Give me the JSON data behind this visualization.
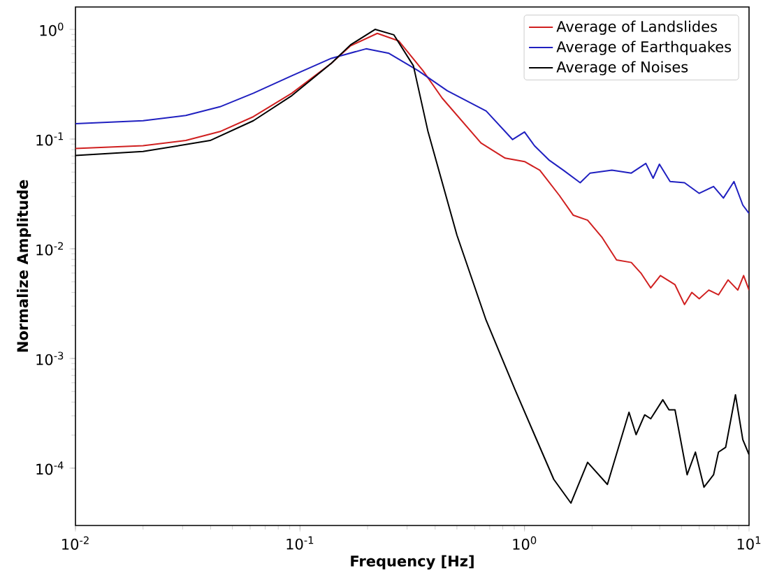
{
  "chart_data": {
    "type": "line",
    "xlabel": "Frequency [Hz]",
    "ylabel": "Normalize Amplitude",
    "log": "xy",
    "grid": false,
    "legend": "top right",
    "line_style": "solid",
    "xlim": [
      0.01,
      10
    ],
    "ylim": [
      3e-05,
      1.6
    ],
    "xticks": [
      {
        "value": 0.01,
        "label": "10$^{-2}$"
      },
      {
        "value": 0.1,
        "label": "10$^{-1}$"
      },
      {
        "value": 1,
        "label": "10$^{0}$"
      },
      {
        "value": 10,
        "label": "10$^{1}$"
      }
    ],
    "yticks": [
      {
        "value": 0.0001,
        "label": "10$^{-4}$"
      },
      {
        "value": 0.001,
        "label": "10$^{-3}$"
      },
      {
        "value": 0.01,
        "label": "10$^{-2}$"
      },
      {
        "value": 0.1,
        "label": "10$^{-1}$"
      },
      {
        "value": 1,
        "label": "10$^{0}$"
      }
    ],
    "series": [
      {
        "name": "Average of Landslides",
        "color": "#d02020",
        "x": [
          0.01,
          0.02,
          0.031,
          0.044,
          0.062,
          0.092,
          0.138,
          0.168,
          0.221,
          0.275,
          0.353,
          0.43,
          0.64,
          0.82,
          1.0,
          1.17,
          1.43,
          1.65,
          1.91,
          2.22,
          2.57,
          2.99,
          3.3,
          3.65,
          4.03,
          4.68,
          5.16,
          5.56,
          6.0,
          6.62,
          7.31,
          8.07,
          8.91,
          9.46,
          10.0
        ],
        "values": [
          0.082,
          0.087,
          0.097,
          0.117,
          0.16,
          0.262,
          0.491,
          0.708,
          0.92,
          0.786,
          0.42,
          0.236,
          0.092,
          0.067,
          0.0624,
          0.052,
          0.0306,
          0.0202,
          0.0182,
          0.0126,
          0.0079,
          0.0075,
          0.006,
          0.0044,
          0.0057,
          0.0047,
          0.0031,
          0.004,
          0.0035,
          0.0042,
          0.0038,
          0.0052,
          0.0042,
          0.0057,
          0.0042
        ]
      },
      {
        "name": "Average of Earthquakes",
        "color": "#2020c0",
        "x": [
          0.01,
          0.02,
          0.031,
          0.044,
          0.062,
          0.092,
          0.138,
          0.197,
          0.249,
          0.336,
          0.453,
          0.675,
          0.885,
          1.0,
          1.107,
          1.29,
          1.49,
          1.77,
          1.96,
          2.45,
          2.99,
          3.47,
          3.74,
          3.99,
          4.45,
          5.16,
          6.0,
          6.95,
          7.69,
          8.57,
          9.38,
          10.0
        ],
        "values": [
          0.138,
          0.147,
          0.164,
          0.197,
          0.262,
          0.378,
          0.545,
          0.665,
          0.605,
          0.42,
          0.276,
          0.18,
          0.099,
          0.116,
          0.087,
          0.064,
          0.052,
          0.04,
          0.049,
          0.052,
          0.049,
          0.06,
          0.044,
          0.059,
          0.041,
          0.04,
          0.032,
          0.037,
          0.029,
          0.041,
          0.025,
          0.021
        ]
      },
      {
        "name": "Average of Noises",
        "color": "#000000",
        "x": [
          0.01,
          0.02,
          0.0398,
          0.062,
          0.092,
          0.138,
          0.168,
          0.216,
          0.262,
          0.32,
          0.371,
          0.5,
          0.674,
          0.908,
          1.107,
          1.35,
          1.61,
          1.91,
          2.34,
          2.92,
          3.14,
          3.43,
          3.65,
          4.13,
          4.4,
          4.68,
          5.3,
          5.77,
          6.3,
          6.95,
          7.31,
          7.87,
          8.7,
          9.38,
          10.0
        ],
        "values": [
          0.0708,
          0.077,
          0.097,
          0.147,
          0.249,
          0.491,
          0.723,
          1.0,
          0.891,
          0.466,
          0.119,
          0.0133,
          0.00224,
          0.000517,
          0.000202,
          7.9e-05,
          4.8e-05,
          0.000113,
          7.1e-05,
          0.000323,
          0.000202,
          0.000306,
          0.000282,
          0.00042,
          0.00034,
          0.00034,
          8.7e-05,
          0.00014,
          6.7e-05,
          8.7e-05,
          0.00014,
          0.000155,
          0.000466,
          0.000182,
          0.000133
        ]
      }
    ]
  }
}
